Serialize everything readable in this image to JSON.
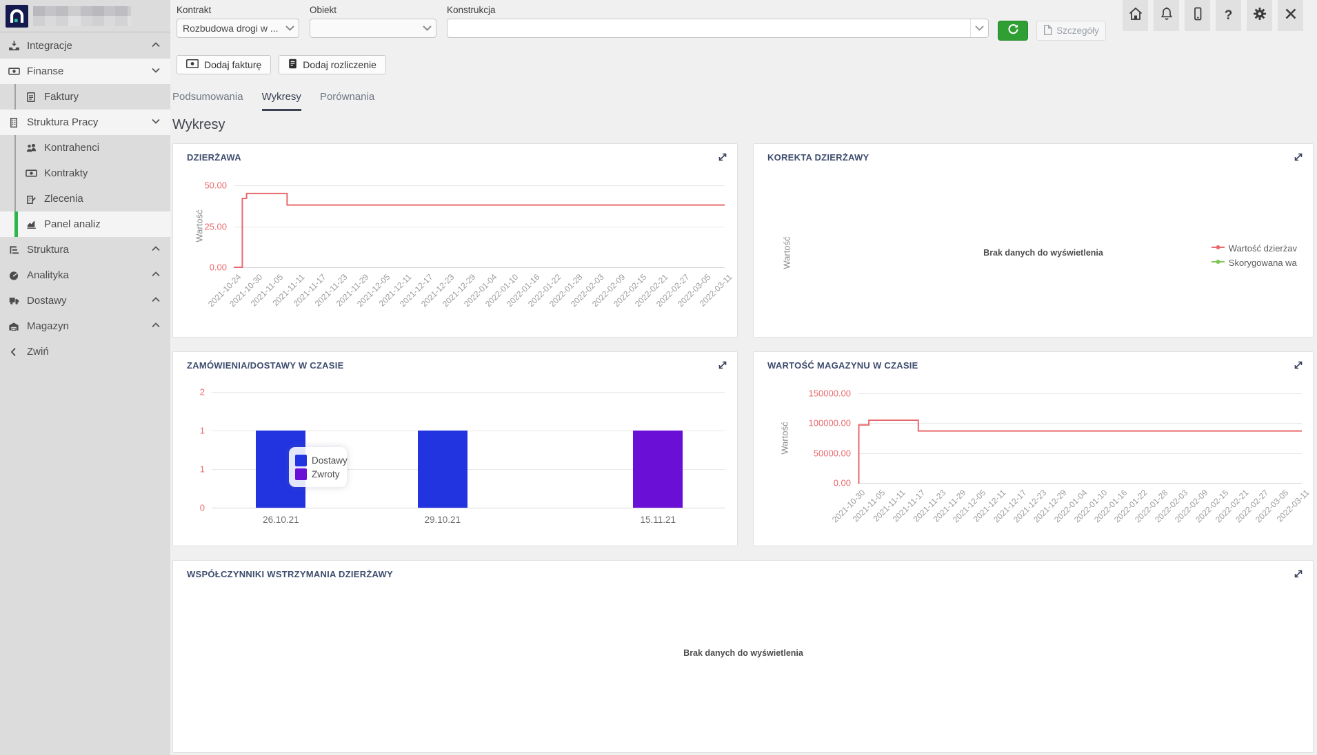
{
  "topbar": {
    "fields": [
      {
        "label": "Kontrakt",
        "value": "Rozbudowa drogi w ...",
        "type": "select"
      },
      {
        "label": "Obiekt",
        "value": "",
        "type": "select"
      },
      {
        "label": "Konstrukcja",
        "value": "",
        "type": "combobox"
      }
    ],
    "refresh_button": {
      "icon": "refresh-icon",
      "color": "#2f9e33"
    },
    "details_button": {
      "label": "Szczegóły",
      "disabled": true
    },
    "window_icons": [
      "home",
      "bell",
      "mobile",
      "help",
      "settings",
      "close"
    ],
    "action_buttons": [
      {
        "label": "Dodaj fakturę",
        "icon": "banknote-icon"
      },
      {
        "label": "Dodaj rozliczenie",
        "icon": "receipt-icon"
      }
    ]
  },
  "sidebar": {
    "items": [
      {
        "label": "Integracje",
        "icon": "inbox-import-icon",
        "level": 1,
        "chevron": "up",
        "bg": "gray"
      },
      {
        "label": "Finanse",
        "icon": "banknote-icon",
        "level": 1,
        "chevron": "down",
        "bg": "light"
      },
      {
        "label": "Faktury",
        "icon": "invoice-icon",
        "level": 2,
        "bg": "gray"
      },
      {
        "label": "Struktura Pracy",
        "icon": "building-icon",
        "level": 1,
        "chevron": "down",
        "bg": "light"
      },
      {
        "label": "Kontrahenci",
        "icon": "people-icon",
        "level": 2,
        "bg": "gray"
      },
      {
        "label": "Kontrakty",
        "icon": "banknote-icon",
        "level": 2,
        "bg": "gray"
      },
      {
        "label": "Zlecenia",
        "icon": "order-icon",
        "level": 2,
        "bg": "gray"
      },
      {
        "label": "Panel analiz",
        "icon": "chart-icon",
        "level": 2,
        "bg": "light",
        "active": true
      },
      {
        "label": "Struktura",
        "icon": "tree-icon",
        "level": 1,
        "chevron": "up",
        "bg": "gray"
      },
      {
        "label": "Analityka",
        "icon": "gauge-icon",
        "level": 1,
        "chevron": "up",
        "bg": "gray"
      },
      {
        "label": "Dostawy",
        "icon": "truck-icon",
        "level": 1,
        "chevron": "up",
        "bg": "gray"
      },
      {
        "label": "Magazyn",
        "icon": "warehouse-icon",
        "level": 1,
        "chevron": "up",
        "bg": "gray"
      },
      {
        "label": "Zwiń",
        "icon": "collapse-icon",
        "level": 1,
        "bg": "gray",
        "icon_left": true
      }
    ],
    "active_color": "#2db54b"
  },
  "tabs": {
    "items": [
      {
        "label": "Podsumowania",
        "active": false
      },
      {
        "label": "Wykresy",
        "active": true
      },
      {
        "label": "Porównania",
        "active": false
      }
    ]
  },
  "main": {
    "title": "Wykresy"
  },
  "charts": {
    "dzierzawa": {
      "title": "DZIERŻAWA",
      "chart_data": {
        "type": "line",
        "step": true,
        "title": "DZIERŻAWA",
        "ylabel": "Wartość",
        "ylim": [
          0,
          50
        ],
        "y_ticks": [
          "50.00",
          "25.00",
          "0.00"
        ],
        "tick_color": "#e96a6e",
        "line_color": "#e96a6e",
        "grid": true,
        "categories": [
          "2021-10-24",
          "2021-10-30",
          "2021-11-05",
          "2021-11-11",
          "2021-11-17",
          "2021-11-23",
          "2021-11-29",
          "2021-12-05",
          "2021-12-11",
          "2021-12-17",
          "2021-12-23",
          "2021-12-29",
          "2022-01-04",
          "2022-01-10",
          "2022-01-16",
          "2022-01-22",
          "2022-01-28",
          "2022-02-03",
          "2022-02-09",
          "2022-02-15",
          "2022-02-21",
          "2022-02-27",
          "2022-03-05",
          "2022-03-11"
        ],
        "vertices": [
          [
            0,
            0
          ],
          [
            0.4,
            0
          ],
          [
            0.4,
            42
          ],
          [
            0.6,
            42
          ],
          [
            0.6,
            45
          ],
          [
            2.5,
            45
          ],
          [
            2.5,
            38
          ],
          [
            23,
            38
          ]
        ],
        "series_note": "value starts 0 on 2021-10-24, jumps to 42 then 45, drops to ~38 around 2021-11-07 and stays flat through 2022-03-11"
      }
    },
    "korekta": {
      "title": "KOREKTA DZIERŻAWY",
      "ylabel": "Wartość",
      "empty_text": "Brak danych do wyświetlenia",
      "legend": [
        {
          "label": "Wartość dzierżav",
          "color": "#e96a6e"
        },
        {
          "label": "Skorygowana wa",
          "color": "#7fc550"
        }
      ]
    },
    "zamowienia": {
      "title": "ZAMÓWIENIA/DOSTAWY W CZASIE",
      "chart_data": {
        "type": "bar",
        "title": "ZAMÓWIENIA/DOSTAWY W CZASIE",
        "categories": [
          "26.10.21",
          "29.10.21",
          "15.11.21"
        ],
        "series": [
          {
            "name": "Dostawy",
            "color": "#2134e0",
            "values": [
              1,
              1,
              0
            ]
          },
          {
            "name": "Zwroty",
            "color": "#6a10d6",
            "values": [
              0,
              0,
              1
            ]
          }
        ],
        "bars": [
          {
            "label": "26.10.21",
            "series": "Dostawy",
            "value": 1,
            "center": 0.135
          },
          {
            "label": "29.10.21",
            "series": "Dostawy",
            "value": 1,
            "center": 0.45
          },
          {
            "label": "15.11.21",
            "series": "Zwroty",
            "value": 1,
            "center": 0.87
          }
        ],
        "y_ticks": [
          "2",
          "1",
          "1",
          "0"
        ],
        "ylim": [
          0,
          1.5
        ],
        "tick_color": "#e96a6e",
        "legend_position": "floating-overlay",
        "grid": true
      }
    },
    "magazyn": {
      "title": "WARTOŚĆ MAGAZYNU W CZASIE",
      "chart_data": {
        "type": "line",
        "step": true,
        "title": "WARTOŚĆ MAGAZYNU W CZASIE",
        "ylabel": "Wartość",
        "ylim": [
          0,
          150000
        ],
        "y_ticks": [
          "150000.00",
          "100000.00",
          "50000.00",
          "0.00"
        ],
        "tick_color": "#e96a6e",
        "line_color": "#e96a6e",
        "grid": true,
        "categories": [
          "2021-10-30",
          "2021-11-05",
          "2021-11-11",
          "2021-11-17",
          "2021-11-23",
          "2021-11-29",
          "2021-12-05",
          "2021-12-11",
          "2021-12-17",
          "2021-12-23",
          "2021-12-29",
          "2022-01-04",
          "2022-01-10",
          "2022-01-16",
          "2022-01-22",
          "2022-01-28",
          "2022-02-03",
          "2022-02-09",
          "2022-02-15",
          "2022-02-21",
          "2022-02-27",
          "2022-03-05",
          "2022-03-11"
        ],
        "vertices": [
          [
            0,
            0
          ],
          [
            0.05,
            0
          ],
          [
            0.05,
            97000
          ],
          [
            0.55,
            97000
          ],
          [
            0.55,
            105000
          ],
          [
            3,
            105000
          ],
          [
            3,
            87000
          ],
          [
            22,
            87000
          ]
        ],
        "series_note": "value starts 0 on 2021-10-30, jumps to ~97000 then ~105000, drops to ~87000 around 2021-11-16 and stays flat through 2022-03-11"
      }
    },
    "wspolczynniki": {
      "title": "WSPÓŁCZYNNIKI WSTRZYMANIA DZIERŻAWY",
      "empty_text": "Brak danych do wyświetlenia"
    }
  }
}
